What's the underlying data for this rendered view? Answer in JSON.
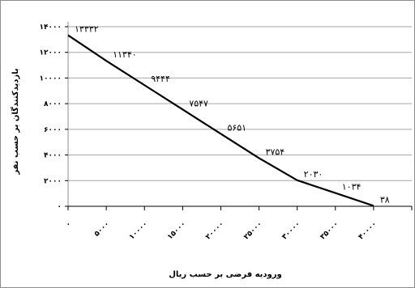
{
  "chart_data": {
    "type": "line",
    "x": [
      0,
      5000,
      10000,
      15000,
      20000,
      25000,
      30000,
      35000,
      40000
    ],
    "x_tick_labels": [
      "۰",
      "۵۰۰۰",
      "۱۰۰۰۰",
      "۱۵۰۰۰",
      "۲۰۰۰۰",
      "۲۵۰۰۰",
      "۳۰۰۰۰",
      "۳۵۰۰۰",
      "۴۰۰۰۰"
    ],
    "y_tick_values": [
      0,
      2000,
      4000,
      6000,
      8000,
      10000,
      12000,
      14000
    ],
    "y_tick_labels": [
      "۰",
      "۲۰۰۰",
      "۴۰۰۰",
      "۶۰۰۰",
      "۸۰۰۰",
      "۱۰۰۰۰",
      "۱۲۰۰۰",
      "۱۴۰۰۰"
    ],
    "series": [
      {
        "values": [
          13332,
          11340,
          9444,
          7547,
          5651,
          3754,
          2030,
          1034,
          38
        ],
        "data_labels": [
          "۱۳۳۳۲",
          "۱۱۳۴۰",
          "۹۴۴۴",
          "۷۵۴۷",
          "۵۶۵۱",
          "۳۷۵۴",
          "۲۰۳۰",
          "۱۰۳۴",
          "۳۸"
        ],
        "color": "#000000"
      }
    ],
    "xlabel": "ورودیه فرضی بر حسب ریال",
    "ylabel": "بازدیدکنندگان بر حسب نفر",
    "xlim": [
      0,
      40000
    ],
    "ylim": [
      0,
      14000
    ],
    "grid": true,
    "legend": "none"
  }
}
